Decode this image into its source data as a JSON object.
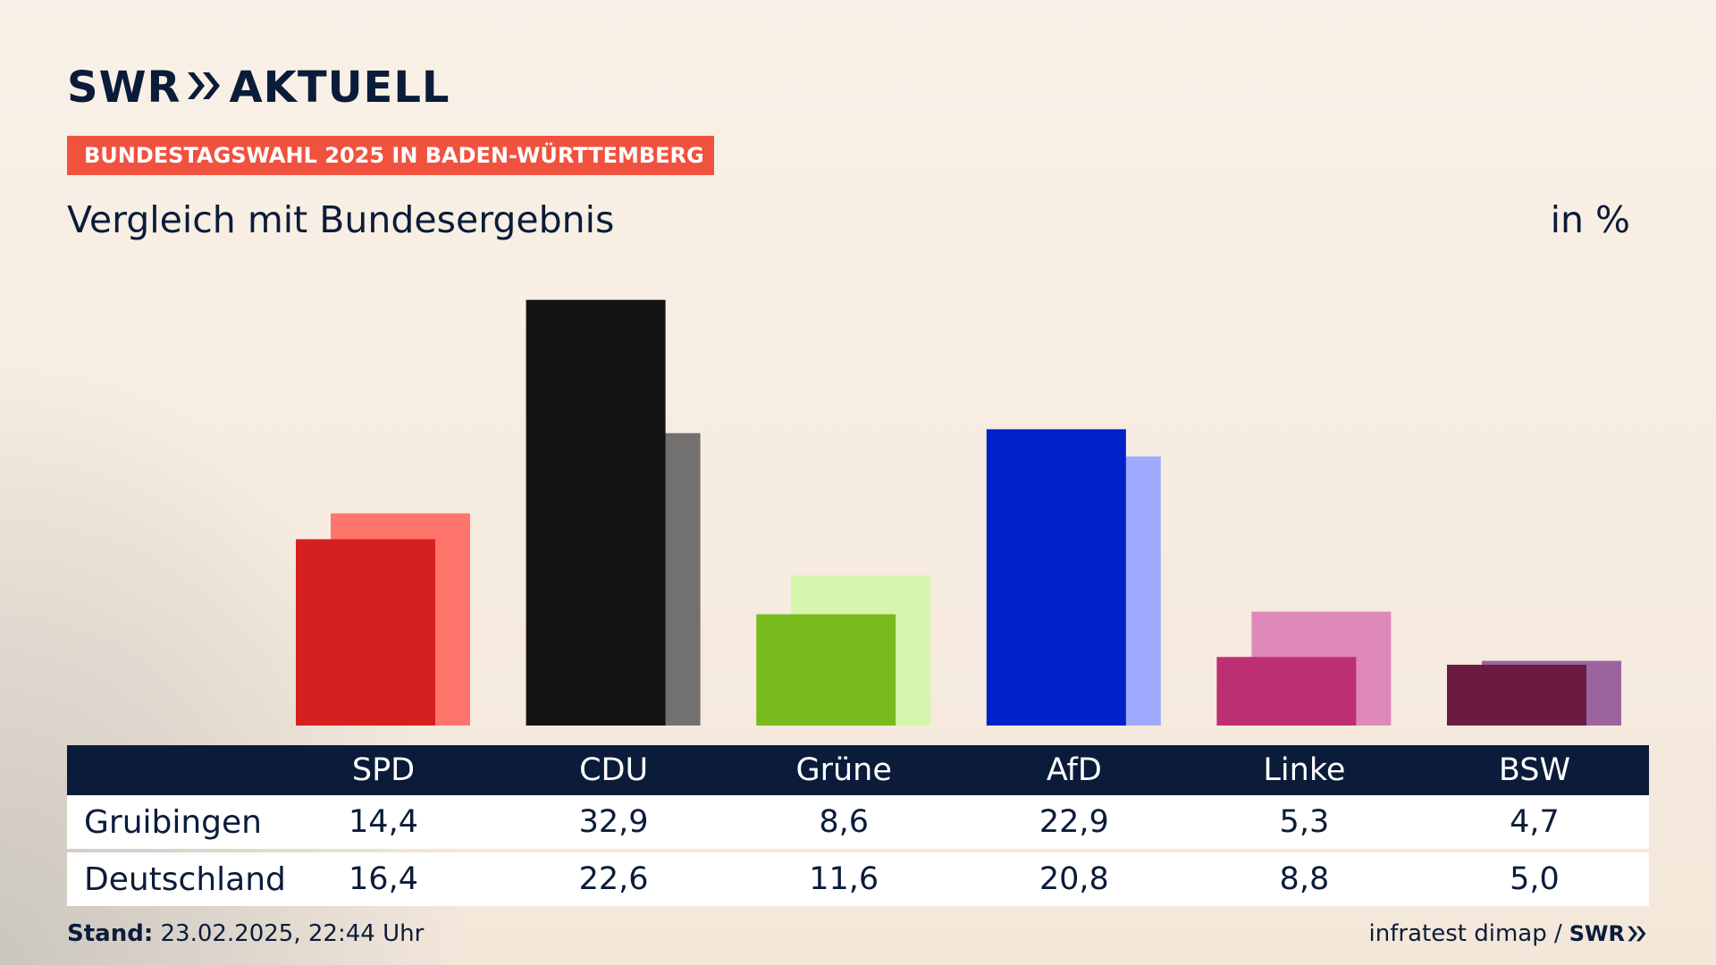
{
  "brand": {
    "logo_text_left": "SWR",
    "logo_text_right": "AKTUELL",
    "footer_logo": "SWR"
  },
  "header": {
    "badge": "BUNDESTAGSWAHL 2025 IN BADEN-WÜRTTEMBERG",
    "subtitle": "Vergleich mit Bundesergebnis",
    "unit": "in %"
  },
  "footer": {
    "stand_label": "Stand:",
    "stand_value": "23.02.2025, 22:44 Uhr",
    "source": "infratest dimap /"
  },
  "colors": {
    "navy": "#0b1c3a",
    "badge": "#f0523f"
  },
  "chart_data": {
    "type": "bar",
    "categories": [
      "SPD",
      "CDU",
      "Grüne",
      "AfD",
      "Linke",
      "BSW"
    ],
    "series": [
      {
        "name": "Gruibingen",
        "values": [
          14.4,
          32.9,
          8.6,
          22.9,
          5.3,
          4.7
        ],
        "colors": [
          "#d62020",
          "#141414",
          "#77bb1e",
          "#0020c8",
          "#bd2f73",
          "#6b1a42"
        ]
      },
      {
        "name": "Deutschland",
        "values": [
          16.4,
          22.6,
          11.6,
          20.8,
          8.8,
          5.0
        ],
        "colors": [
          "#ff756c",
          "#727170",
          "#d8f5ad",
          "#9daafe",
          "#de89b8",
          "#9c649e"
        ]
      }
    ],
    "table_values": {
      "Gruibingen": [
        "14,4",
        "32,9",
        "8,6",
        "22,9",
        "5,3",
        "4,7"
      ],
      "Deutschland": [
        "16,4",
        "22,6",
        "11,6",
        "20,8",
        "8,8",
        "5,0"
      ]
    },
    "ylim": [
      0,
      33
    ]
  }
}
